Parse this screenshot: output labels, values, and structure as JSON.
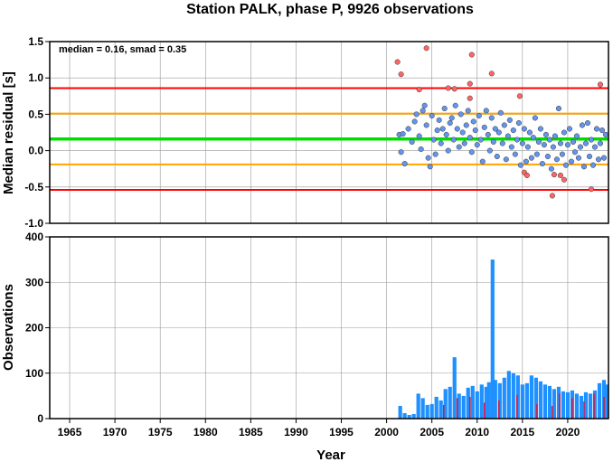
{
  "chart_data": [
    {
      "type": "scatter",
      "title": "Station PALK, phase P, 9926 observations",
      "ylabel": "Median residual [s]",
      "xlim": [
        1962.8,
        2024.5
      ],
      "ylim": [
        -1.0,
        1.5
      ],
      "yticks": [
        "-1.0",
        "-0.5",
        "0.0",
        "0.5",
        "1.0",
        "1.5"
      ],
      "annotation": "median = 0.16, smad = 0.35",
      "grid": true,
      "reference_lines": [
        {
          "y": 0.16,
          "color": "#00dd00"
        },
        {
          "y": 0.51,
          "color": "#ffa500"
        },
        {
          "y": -0.19,
          "color": "#ffa500"
        },
        {
          "y": 0.86,
          "color": "#ff0000"
        },
        {
          "y": -0.54,
          "color": "#ff0000"
        }
      ],
      "series": [
        {
          "kind": "inlier",
          "color": "#6495ed",
          "points": [
            [
              2001.4,
              0.22
            ],
            [
              2001.6,
              -0.02
            ],
            [
              2001.8,
              0.23
            ],
            [
              2002.0,
              -0.18
            ],
            [
              2002.4,
              0.3
            ],
            [
              2002.8,
              0.12
            ],
            [
              2003.1,
              0.4
            ],
            [
              2003.3,
              0.5
            ],
            [
              2003.6,
              0.2
            ],
            [
              2003.8,
              0.02
            ],
            [
              2004.0,
              0.55
            ],
            [
              2004.2,
              0.62
            ],
            [
              2004.4,
              0.35
            ],
            [
              2004.6,
              -0.1
            ],
            [
              2004.8,
              -0.22
            ],
            [
              2005.0,
              0.48
            ],
            [
              2005.2,
              0.15
            ],
            [
              2005.4,
              -0.05
            ],
            [
              2005.6,
              0.28
            ],
            [
              2005.8,
              0.42
            ],
            [
              2006.0,
              0.1
            ],
            [
              2006.2,
              0.3
            ],
            [
              2006.4,
              0.58
            ],
            [
              2006.6,
              0.22
            ],
            [
              2006.8,
              0.0
            ],
            [
              2007.0,
              0.38
            ],
            [
              2007.2,
              0.45
            ],
            [
              2007.4,
              0.15
            ],
            [
              2007.6,
              0.62
            ],
            [
              2007.8,
              0.3
            ],
            [
              2008.0,
              0.05
            ],
            [
              2008.2,
              0.5
            ],
            [
              2008.4,
              0.25
            ],
            [
              2008.6,
              0.1
            ],
            [
              2008.8,
              0.35
            ],
            [
              2009.0,
              0.55
            ],
            [
              2009.2,
              0.18
            ],
            [
              2009.4,
              -0.02
            ],
            [
              2009.6,
              0.4
            ],
            [
              2009.8,
              0.28
            ],
            [
              2010.0,
              0.08
            ],
            [
              2010.2,
              0.48
            ],
            [
              2010.4,
              0.15
            ],
            [
              2010.6,
              -0.15
            ],
            [
              2010.8,
              0.32
            ],
            [
              2011.0,
              0.55
            ],
            [
              2011.2,
              0.22
            ],
            [
              2011.4,
              0.0
            ],
            [
              2011.6,
              0.45
            ],
            [
              2011.8,
              0.12
            ],
            [
              2012.0,
              0.3
            ],
            [
              2012.2,
              -0.08
            ],
            [
              2012.4,
              0.25
            ],
            [
              2012.6,
              0.52
            ],
            [
              2012.8,
              0.1
            ],
            [
              2013.0,
              0.35
            ],
            [
              2013.2,
              -0.12
            ],
            [
              2013.4,
              0.2
            ],
            [
              2013.6,
              0.42
            ],
            [
              2013.8,
              0.05
            ],
            [
              2014.0,
              0.28
            ],
            [
              2014.2,
              -0.05
            ],
            [
              2014.4,
              0.15
            ],
            [
              2014.6,
              0.38
            ],
            [
              2014.8,
              -0.2
            ],
            [
              2015.0,
              0.1
            ],
            [
              2015.2,
              0.3
            ],
            [
              2015.4,
              -0.15
            ],
            [
              2015.6,
              0.05
            ],
            [
              2015.8,
              0.25
            ],
            [
              2016.0,
              -0.1
            ],
            [
              2016.2,
              0.18
            ],
            [
              2016.4,
              0.45
            ],
            [
              2016.6,
              -0.05
            ],
            [
              2016.8,
              0.12
            ],
            [
              2017.0,
              0.3
            ],
            [
              2017.2,
              -0.18
            ],
            [
              2017.4,
              0.08
            ],
            [
              2017.6,
              0.22
            ],
            [
              2017.8,
              -0.08
            ],
            [
              2018.0,
              0.15
            ],
            [
              2018.2,
              -0.25
            ],
            [
              2018.4,
              0.05
            ],
            [
              2018.6,
              0.2
            ],
            [
              2018.8,
              -0.12
            ],
            [
              2019.0,
              0.58
            ],
            [
              2019.2,
              0.1
            ],
            [
              2019.4,
              -0.05
            ],
            [
              2019.6,
              0.25
            ],
            [
              2019.8,
              -0.2
            ],
            [
              2020.0,
              0.08
            ],
            [
              2020.2,
              0.3
            ],
            [
              2020.4,
              -0.15
            ],
            [
              2020.6,
              0.12
            ],
            [
              2020.8,
              -0.02
            ],
            [
              2021.0,
              0.2
            ],
            [
              2021.2,
              -0.1
            ],
            [
              2021.4,
              0.05
            ],
            [
              2021.6,
              0.35
            ],
            [
              2021.8,
              -0.22
            ],
            [
              2022.0,
              0.1
            ],
            [
              2022.2,
              0.38
            ],
            [
              2022.4,
              -0.08
            ],
            [
              2022.6,
              0.15
            ],
            [
              2022.8,
              -0.2
            ],
            [
              2023.0,
              0.05
            ],
            [
              2023.2,
              0.3
            ],
            [
              2023.4,
              -0.12
            ],
            [
              2023.6,
              0.1
            ],
            [
              2023.8,
              0.28
            ],
            [
              2024.0,
              -0.1
            ],
            [
              2024.2,
              0.22
            ]
          ]
        },
        {
          "kind": "outlier",
          "color": "#ff6464",
          "points": [
            [
              2001.2,
              1.22
            ],
            [
              2001.6,
              1.05
            ],
            [
              2003.6,
              0.84
            ],
            [
              2004.4,
              1.41
            ],
            [
              2006.8,
              0.86
            ],
            [
              2007.5,
              0.85
            ],
            [
              2009.2,
              0.92
            ],
            [
              2009.4,
              1.32
            ],
            [
              2009.2,
              0.72
            ],
            [
              2011.6,
              1.06
            ],
            [
              2014.7,
              0.75
            ],
            [
              2015.2,
              -0.3
            ],
            [
              2015.5,
              -0.34
            ],
            [
              2018.3,
              -0.62
            ],
            [
              2018.5,
              -0.33
            ],
            [
              2019.2,
              -0.34
            ],
            [
              2019.6,
              -0.4
            ],
            [
              2022.6,
              -0.53
            ],
            [
              2023.6,
              0.91
            ]
          ]
        }
      ]
    },
    {
      "type": "bar",
      "xlabel": "Year",
      "ylabel": "Observations",
      "xlim": [
        1962.8,
        2024.5
      ],
      "ylim": [
        0,
        400
      ],
      "xticks": [
        "1965",
        "1970",
        "1975",
        "1980",
        "1985",
        "1990",
        "1995",
        "2000",
        "2005",
        "2010",
        "2015",
        "2020"
      ],
      "yticks": [
        "0",
        "100",
        "200",
        "300",
        "400"
      ],
      "grid": true,
      "series": [
        {
          "kind": "counts",
          "color": "#1e90ff",
          "points": [
            [
              2001.5,
              28
            ],
            [
              2002.0,
              12
            ],
            [
              2002.5,
              8
            ],
            [
              2003.0,
              10
            ],
            [
              2003.5,
              55
            ],
            [
              2004.0,
              45
            ],
            [
              2004.5,
              30
            ],
            [
              2005.0,
              32
            ],
            [
              2005.5,
              48
            ],
            [
              2006.0,
              40
            ],
            [
              2006.5,
              65
            ],
            [
              2007.0,
              70
            ],
            [
              2007.5,
              135
            ],
            [
              2008.0,
              55
            ],
            [
              2008.5,
              50
            ],
            [
              2009.0,
              68
            ],
            [
              2009.5,
              72
            ],
            [
              2010.0,
              60
            ],
            [
              2010.5,
              75
            ],
            [
              2011.0,
              70
            ],
            [
              2011.3,
              80
            ],
            [
              2011.7,
              350
            ],
            [
              2012.0,
              85
            ],
            [
              2012.5,
              78
            ],
            [
              2013.0,
              90
            ],
            [
              2013.5,
              105
            ],
            [
              2014.0,
              100
            ],
            [
              2014.5,
              95
            ],
            [
              2015.0,
              75
            ],
            [
              2015.5,
              78
            ],
            [
              2016.0,
              95
            ],
            [
              2016.5,
              90
            ],
            [
              2017.0,
              82
            ],
            [
              2017.5,
              75
            ],
            [
              2018.0,
              72
            ],
            [
              2018.5,
              65
            ],
            [
              2019.0,
              70
            ],
            [
              2019.5,
              60
            ],
            [
              2020.0,
              58
            ],
            [
              2020.5,
              62
            ],
            [
              2021.0,
              55
            ],
            [
              2021.5,
              50
            ],
            [
              2022.0,
              58
            ],
            [
              2022.5,
              55
            ],
            [
              2023.0,
              62
            ],
            [
              2023.5,
              78
            ],
            [
              2024.0,
              85
            ],
            [
              2024.3,
              75
            ]
          ]
        },
        {
          "kind": "flagged",
          "color": "#dc143c",
          "points": [
            [
              2006.3,
              30
            ],
            [
              2007.8,
              45
            ],
            [
              2009.2,
              48
            ],
            [
              2010.8,
              35
            ],
            [
              2012.4,
              40
            ],
            [
              2014.4,
              52
            ],
            [
              2016.6,
              32
            ],
            [
              2018.3,
              28
            ],
            [
              2019.1,
              55
            ],
            [
              2020.5,
              45
            ],
            [
              2021.8,
              38
            ],
            [
              2022.9,
              55
            ],
            [
              2024.0,
              48
            ]
          ]
        }
      ]
    }
  ]
}
